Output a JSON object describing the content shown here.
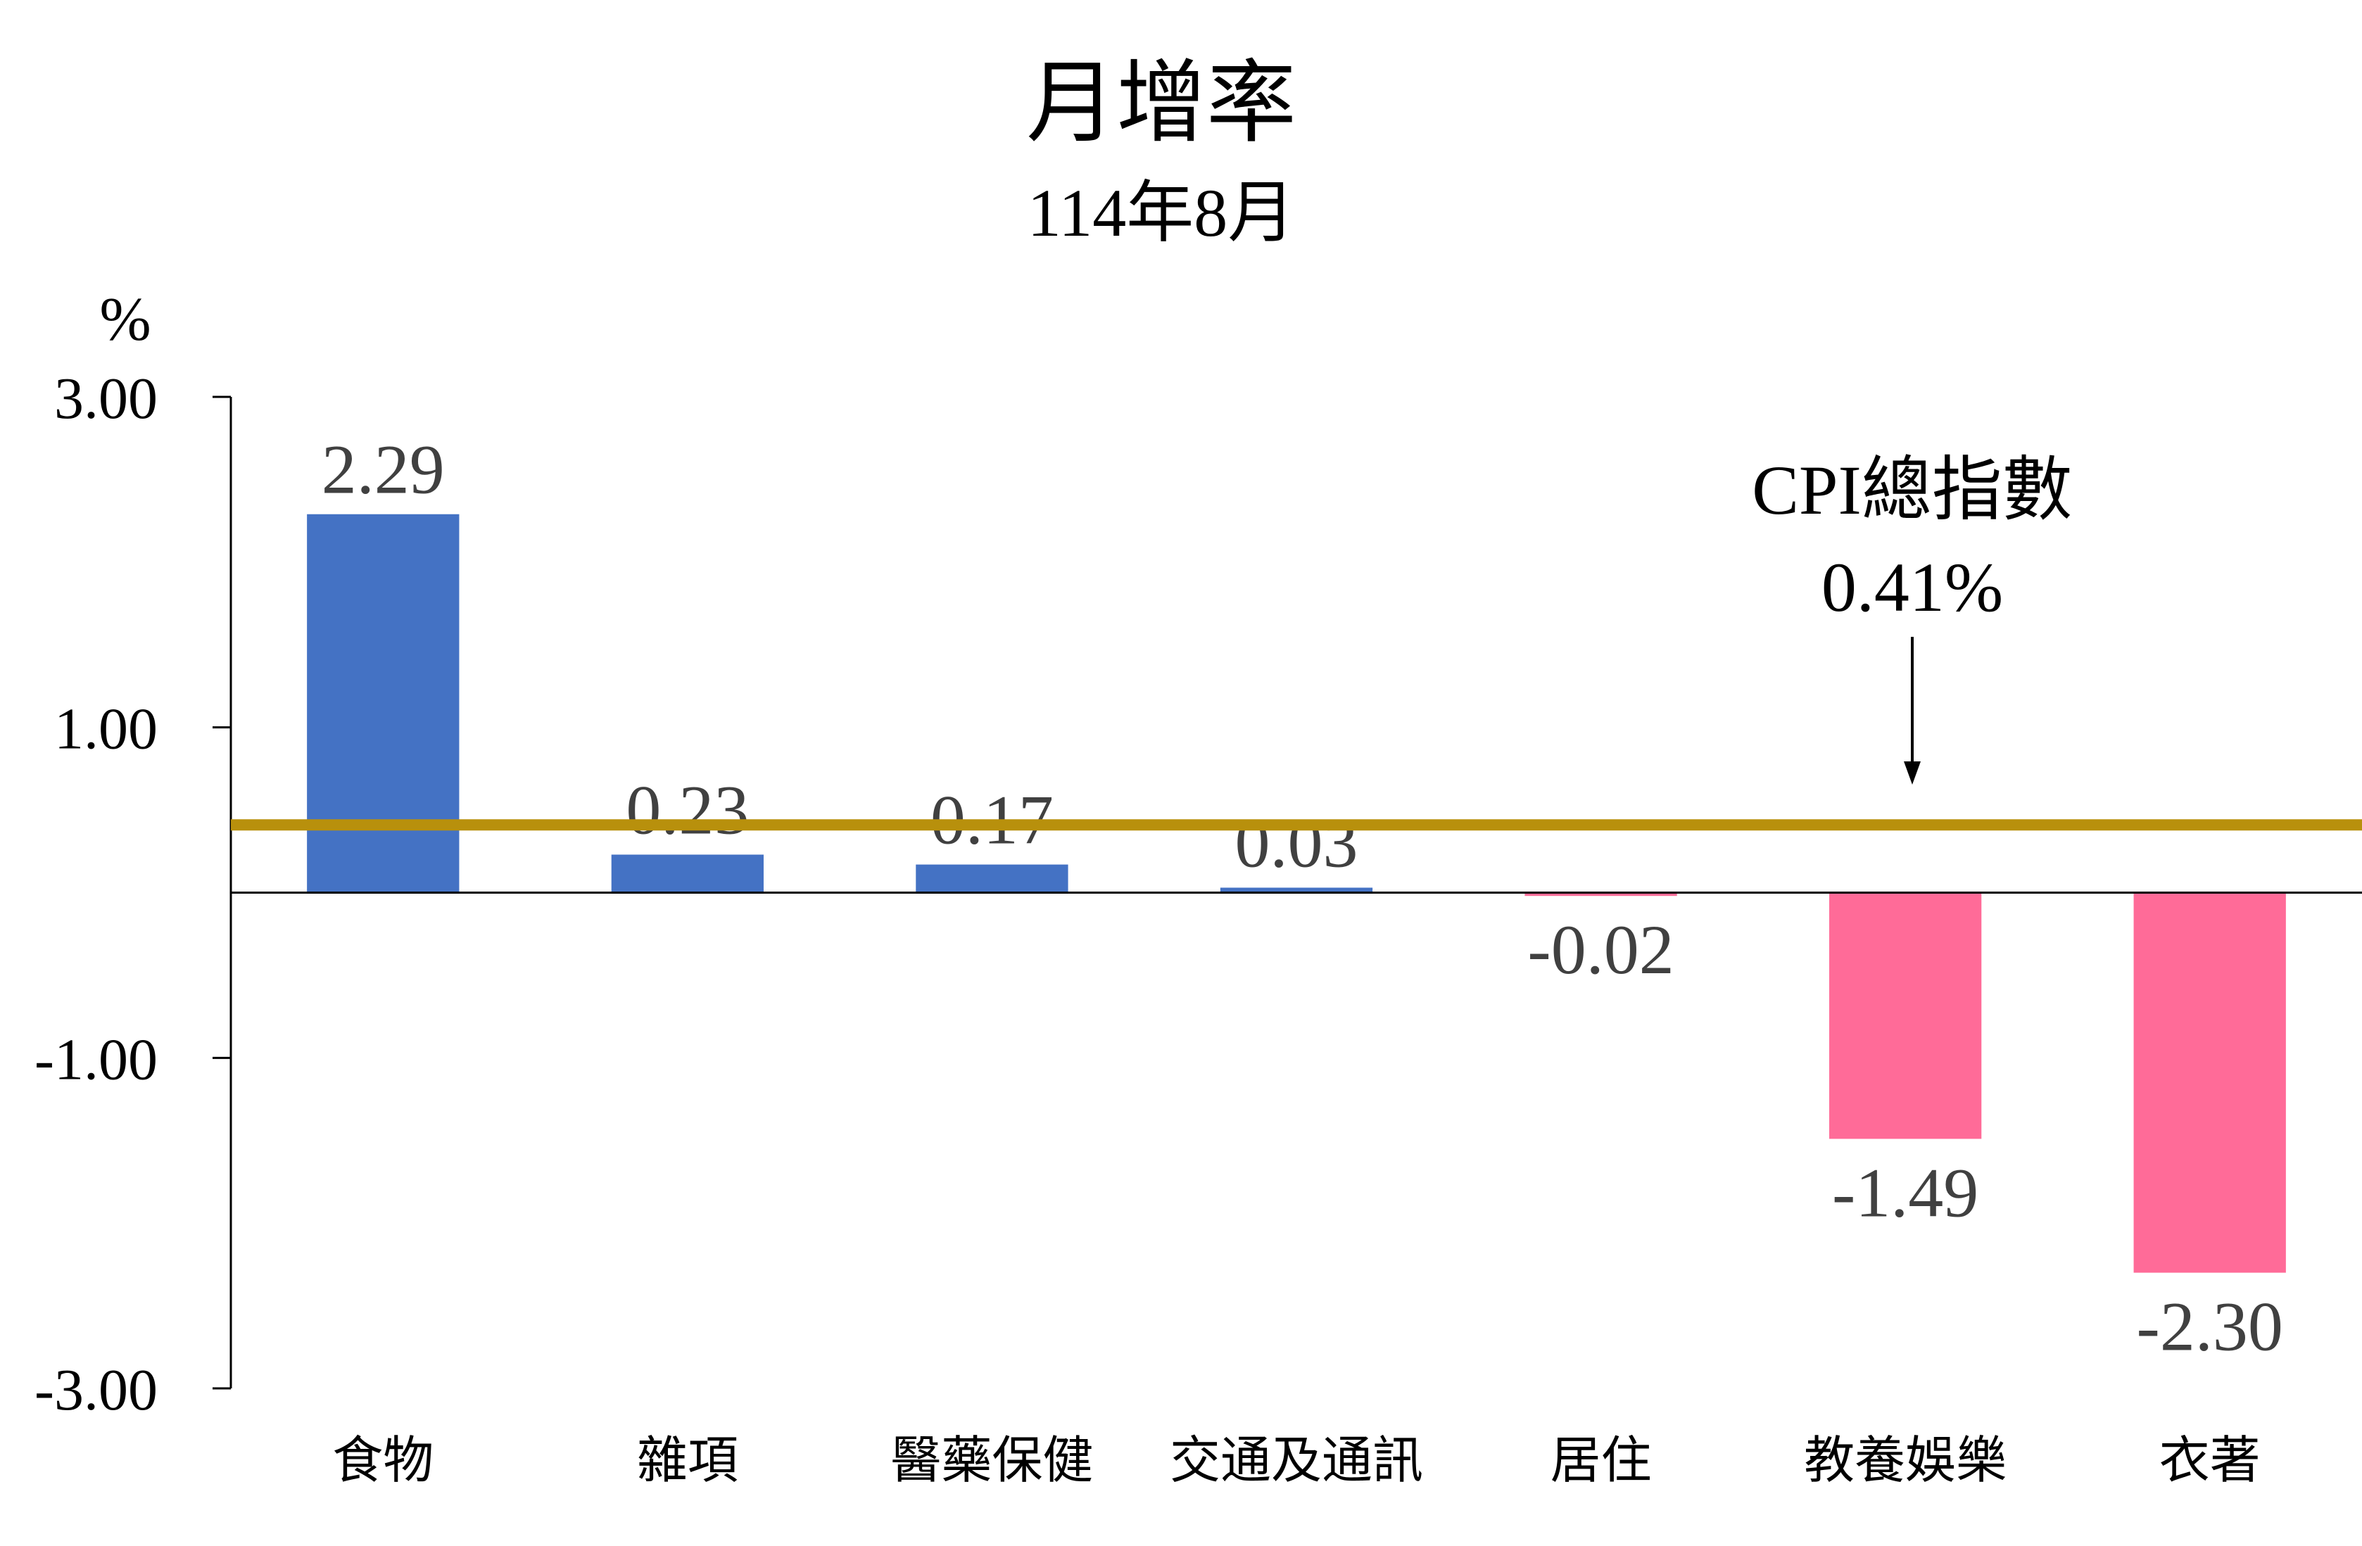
{
  "chart_data": {
    "type": "bar",
    "title": "月增率",
    "subtitle": "114年8月",
    "ylabel": "%",
    "ylim": [
      -3,
      3
    ],
    "yticks": [
      3,
      1,
      -1,
      -3
    ],
    "ytick_labels": [
      "3.00",
      "1.00",
      "-1.00",
      "-3.00"
    ],
    "categories": [
      "食物",
      "雜項",
      "醫藥保健",
      "交通及通訊",
      "居住",
      "教養娛樂",
      "衣著"
    ],
    "values": [
      2.29,
      0.23,
      0.17,
      0.03,
      -0.02,
      -1.49,
      -2.3
    ],
    "value_labels": [
      "2.29",
      "0.23",
      "0.17",
      "0.03",
      "-0.02",
      "-1.49",
      "-2.30"
    ],
    "reference_line": {
      "value": 0.41,
      "label": "CPI總指數",
      "value_label": "0.41%"
    },
    "colors": {
      "positive": "#4472C4",
      "negative": "#FF6B98",
      "reference": "#B8900C",
      "text": "#000000",
      "value_text": "#404040"
    },
    "grid": false,
    "legend": "none"
  }
}
